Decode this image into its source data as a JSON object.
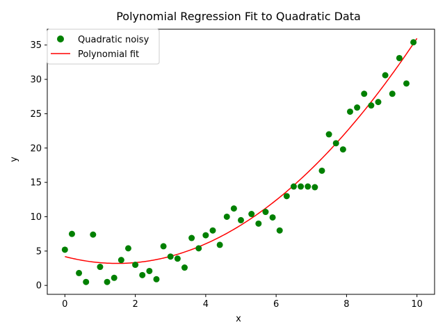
{
  "chart_data": {
    "type": "scatter",
    "title": "Polynomial Regression Fit to Quadratic Data",
    "xlabel": "x",
    "ylabel": "y",
    "xlim": [
      -0.5,
      10.5
    ],
    "ylim": [
      -1.3,
      37.3
    ],
    "xticks": [
      0,
      2,
      4,
      6,
      8,
      10
    ],
    "yticks": [
      0,
      5,
      10,
      15,
      20,
      25,
      30,
      35
    ],
    "grid": false,
    "legend_position": "top-left",
    "series": [
      {
        "name": "Quadratic noisy",
        "kind": "scatter",
        "color": "#008000",
        "x": [
          0.0,
          0.2,
          0.4,
          0.6,
          0.8,
          1.0,
          1.2,
          1.4,
          1.6,
          1.8,
          2.0,
          2.2,
          2.4,
          2.6,
          2.8,
          3.0,
          3.2,
          3.4,
          3.6,
          3.8,
          4.0,
          4.2,
          4.4,
          4.6,
          4.8,
          5.0,
          5.3,
          5.5,
          5.7,
          5.9,
          6.1,
          6.3,
          6.5,
          6.7,
          6.9,
          7.1,
          7.3,
          7.5,
          7.7,
          7.9,
          8.1,
          8.3,
          8.5,
          8.7,
          8.9,
          9.1,
          9.3,
          9.5,
          9.7,
          9.9
        ],
        "y": [
          5.2,
          7.5,
          1.8,
          0.5,
          7.4,
          2.7,
          0.5,
          1.1,
          3.7,
          5.4,
          3.0,
          1.5,
          2.1,
          0.9,
          5.7,
          4.2,
          3.9,
          2.6,
          6.9,
          5.4,
          7.3,
          8.0,
          5.9,
          10.0,
          11.2,
          9.5,
          10.4,
          9.0,
          10.7,
          9.9,
          8.0,
          13.0,
          14.4,
          14.4,
          14.4,
          14.3,
          16.7,
          22.0,
          20.7,
          19.8,
          25.3,
          25.9,
          27.9,
          26.2,
          26.7,
          30.6,
          27.9,
          33.1,
          29.4,
          35.4
        ]
      },
      {
        "name": "Polynomial fit",
        "kind": "line",
        "color": "#ff0000",
        "coefficients": {
          "a": 0.452,
          "b": -1.343,
          "c": 4.2
        }
      }
    ]
  }
}
